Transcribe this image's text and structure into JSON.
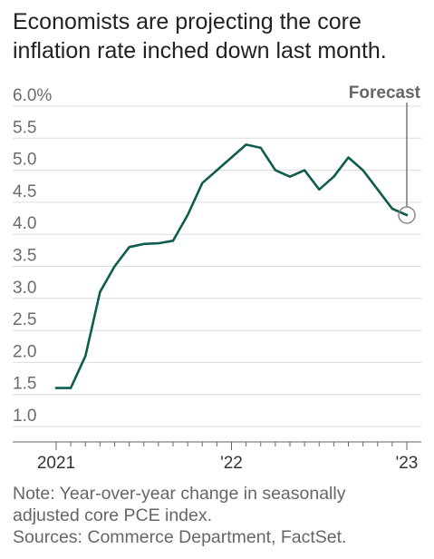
{
  "title": "Economists are projecting the core inflation rate inched down last month.",
  "notes": {
    "note": "Note: Year-over-year change in seasonally",
    "note2": "adjusted core PCE index.",
    "sources": "Sources: Commerce Department, FactSet."
  },
  "chart_data": {
    "type": "line",
    "title": "",
    "xlabel": "",
    "ylabel": "",
    "ylim": [
      1.0,
      6.0
    ],
    "yticks": [
      1.0,
      1.5,
      2.0,
      2.5,
      3.0,
      3.5,
      4.0,
      4.5,
      5.0,
      5.5,
      6.0
    ],
    "ytick_labels": [
      "1.0",
      "1.5",
      "2.0",
      "2.5",
      "3.0",
      "3.5",
      "4.0",
      "4.5",
      "5.0",
      "5.5",
      "6.0%"
    ],
    "x_ticks": [
      {
        "label": "2021",
        "x": "2021-01"
      },
      {
        "label": "'22",
        "x": "2022-01"
      },
      {
        "label": "'23",
        "x": "2023-01"
      }
    ],
    "grid": true,
    "color": "#0e5c4f",
    "series": [
      {
        "x": [
          "2021-01",
          "2021-02",
          "2021-03",
          "2021-04",
          "2021-05",
          "2021-06",
          "2021-07",
          "2021-08",
          "2021-09",
          "2021-10",
          "2021-11",
          "2021-12",
          "2022-01",
          "2022-02",
          "2022-03",
          "2022-04",
          "2022-05",
          "2022-06",
          "2022-07",
          "2022-08",
          "2022-09",
          "2022-10",
          "2022-11",
          "2022-12"
        ],
        "values": [
          1.6,
          1.6,
          2.1,
          3.1,
          3.5,
          3.8,
          3.85,
          3.86,
          3.9,
          4.3,
          4.8,
          5.0,
          5.2,
          5.4,
          5.35,
          5.0,
          4.9,
          5.0,
          4.7,
          4.9,
          5.2,
          5.0,
          4.7,
          4.4
        ]
      }
    ],
    "forecast": {
      "label": "Forecast",
      "x": "2023-01",
      "value": 4.3
    }
  }
}
